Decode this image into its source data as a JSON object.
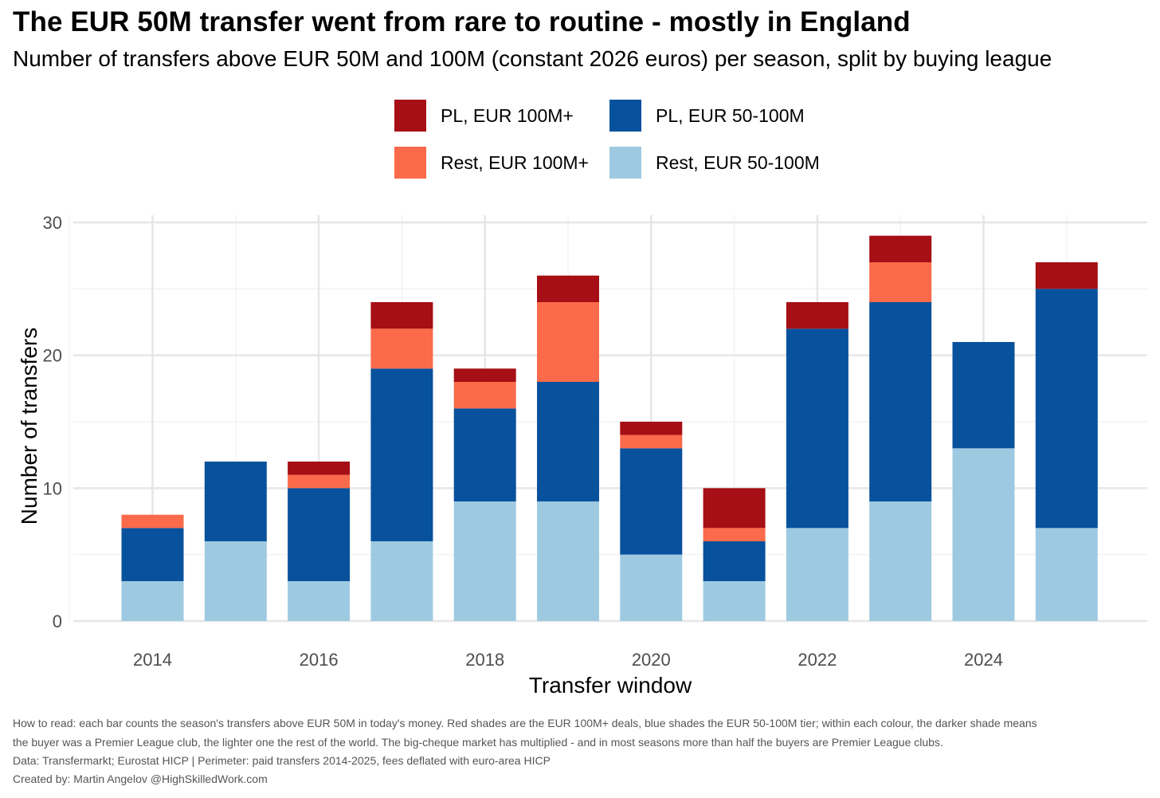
{
  "header": {
    "title": "The EUR 50M transfer went from rare to routine - mostly in England",
    "subtitle": "Number of transfers above EUR 50M and 100M (constant 2026 euros) per season, split by buying league"
  },
  "legend": [
    {
      "label": "PL, EUR 100M+",
      "color": "#A50F15"
    },
    {
      "label": "PL, EUR 50-100M",
      "color": "#08519C"
    },
    {
      "label": "Rest, EUR 100M+",
      "color": "#FB6A4A"
    },
    {
      "label": "Rest, EUR 50-100M",
      "color": "#9ECAE1"
    }
  ],
  "chart_data": {
    "type": "bar",
    "stacked": true,
    "x": [
      2014,
      2015,
      2016,
      2017,
      2018,
      2019,
      2020,
      2021,
      2022,
      2023,
      2024,
      2025
    ],
    "series": [
      {
        "name": "Rest, EUR 50-100M",
        "color": "#9ECAE1",
        "values": [
          3,
          6,
          3,
          6,
          9,
          9,
          5,
          3,
          7,
          9,
          13,
          7
        ]
      },
      {
        "name": "PL, EUR 50-100M",
        "color": "#08519C",
        "values": [
          4,
          6,
          7,
          13,
          7,
          9,
          8,
          3,
          15,
          15,
          8,
          18
        ]
      },
      {
        "name": "Rest, EUR 100M+",
        "color": "#FB6A4A",
        "values": [
          1,
          0,
          1,
          3,
          2,
          6,
          1,
          1,
          0,
          3,
          0,
          0
        ]
      },
      {
        "name": "PL, EUR 100M+",
        "color": "#A50F15",
        "values": [
          0,
          0,
          1,
          2,
          1,
          2,
          1,
          3,
          2,
          2,
          0,
          2
        ]
      }
    ],
    "xlabel": "Transfer window",
    "ylabel": "Number of transfers",
    "x_ticks": [
      "2014",
      "2016",
      "2018",
      "2020",
      "2022",
      "2024"
    ],
    "y_ticks": [
      "0",
      "10",
      "20",
      "30"
    ],
    "ylim": [
      0,
      30
    ],
    "grid": true,
    "legend_position": "top"
  },
  "captions": {
    "how_to_read_line1": "How to read: each bar counts the season's transfers above EUR 50M in today's money. Red shades are the EUR 100M+ deals, blue shades the EUR 50-100M tier; within each colour, the darker shade means",
    "how_to_read_line2": "the buyer was a Premier League club, the lighter one the rest of the world. The big-cheque market has multiplied - and in most seasons more than half the buyers are Premier League clubs.",
    "data_source": "Data: Transfermarkt; Eurostat HICP | Perimeter: paid transfers 2014-2025, fees deflated with euro-area HICP",
    "created_by": "Created by: Martin Angelov @HighSkilledWork.com"
  }
}
